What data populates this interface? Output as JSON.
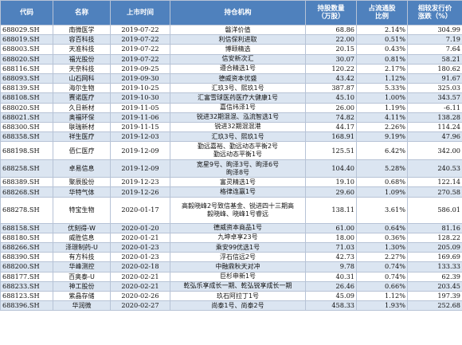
{
  "headers": {
    "code": "代码",
    "name": "名称",
    "date": "上市时间",
    "inst": "持仓机构",
    "shares": "持股数量\n（万股）",
    "ratio": "占流通股\n比例",
    "change": "相较发行价\n涨跌（%）"
  },
  "rows": [
    {
      "code": "688029.SH",
      "name": "南微医学",
      "date": "2019-07-22",
      "inst": "磐洋价值",
      "shares": "68.86",
      "ratio": "2.14%",
      "change": "304.99"
    },
    {
      "code": "688019.SH",
      "name": "容百科技",
      "date": "2019-07-22",
      "inst": "利信保利进取",
      "shares": "22.00",
      "ratio": "0.51%",
      "change": "7.19"
    },
    {
      "code": "688003.SH",
      "name": "天准科技",
      "date": "2019-07-22",
      "inst": "博颐精选",
      "shares": "20.15",
      "ratio": "0.43%",
      "change": "7.64"
    },
    {
      "code": "688020.SH",
      "name": "福光股份",
      "date": "2019-07-22",
      "inst": "信安新次汇",
      "shares": "30.07",
      "ratio": "0.81%",
      "change": "58.21"
    },
    {
      "code": "688116.SH",
      "name": "天奈科技",
      "date": "2019-09-25",
      "inst": "遵合精选1号",
      "shares": "120.22",
      "ratio": "2.17%",
      "change": "180.62"
    },
    {
      "code": "688093.SH",
      "name": "山石网科",
      "date": "2019-09-30",
      "inst": "德威资本优盛",
      "shares": "43.42",
      "ratio": "1.12%",
      "change": "91.67"
    },
    {
      "code": "688139.SH",
      "name": "海尔生物",
      "date": "2019-10-25",
      "inst": "汇玖3号、熙玖1号",
      "shares": "387.87",
      "ratio": "5.33%",
      "change": "325.03"
    },
    {
      "code": "688108.SH",
      "name": "赛诺医疗",
      "date": "2019-10-30",
      "inst": "汇富雪球医药医疗大健康1号",
      "shares": "45.10",
      "ratio": "1.00%",
      "change": "343.57"
    },
    {
      "code": "688020.SH",
      "name": "久日新材",
      "date": "2019-11-05",
      "inst": "嘉信纬泽1号",
      "shares": "26.00",
      "ratio": "1.19%",
      "change": "-6.11"
    },
    {
      "code": "688021.SH",
      "name": "奥福环保",
      "date": "2019-11-06",
      "inst": "锐进32期混混、泓流智选1号",
      "shares": "74.82",
      "ratio": "4.11%",
      "change": "138.28"
    },
    {
      "code": "688300.SH",
      "name": "联瑞新材",
      "date": "2019-11-15",
      "inst": "锐进32期混混港",
      "shares": "44.17",
      "ratio": "2.26%",
      "change": "114.24"
    },
    {
      "code": "688358.SH",
      "name": "祥生医疗",
      "date": "2019-12-03",
      "inst": "汇玖3号、熙玖1号",
      "shares": "168.91",
      "ratio": "9.19%",
      "change": "47.96"
    },
    {
      "code": "688198.SH",
      "name": "佰仁医疗",
      "date": "2019-12-09",
      "inst": "勤远嘉裕、勤远动态平衡2号\n勤远动态平衡1号",
      "shares": "125.51",
      "ratio": "6.42%",
      "change": "342.00"
    },
    {
      "code": "688258.SH",
      "name": "卓易信息",
      "date": "2019-12-09",
      "inst": "宽星9号、昫泽3号、昫泽6号\n昫泽8号",
      "shares": "104.40",
      "ratio": "5.28%",
      "change": "240.53"
    },
    {
      "code": "688389.SH",
      "name": "聚辰股份",
      "date": "2019-12-23",
      "inst": "富灵精选1号",
      "shares": "19.10",
      "ratio": "0.68%",
      "change": "122.14"
    },
    {
      "code": "688268.SH",
      "name": "华特气体",
      "date": "2019-12-26",
      "inst": "格律连赢1号",
      "shares": "29.60",
      "ratio": "1.09%",
      "change": "270.58"
    },
    {
      "code": "688278.SH",
      "name": "特宝生物",
      "date": "2020-01-17",
      "inst": "高毅晓峰2号致信基金、锐进四十三期高\n毅晓峰、晓峰1号睿远",
      "shares": "138.11",
      "ratio": "3.61%",
      "change": "586.01"
    },
    {
      "code": "688158.SH",
      "name": "优刻得-W",
      "date": "2020-01-20",
      "inst": "德威资本商品1号",
      "shares": "61.00",
      "ratio": "0.64%",
      "change": "81.16"
    },
    {
      "code": "688180.SH",
      "name": "威胜信息",
      "date": "2020-01-21",
      "inst": "九坤卓享23号",
      "shares": "18.00",
      "ratio": "0.36%",
      "change": "128.22"
    },
    {
      "code": "688266.SH",
      "name": "泽璟制药-U",
      "date": "2020-01-23",
      "inst": "乘安99优选1号",
      "shares": "71.03",
      "ratio": "1.30%",
      "change": "205.09"
    },
    {
      "code": "688390.SH",
      "name": "有方科技",
      "date": "2020-01-23",
      "inst": "浮石信远2号",
      "shares": "42.73",
      "ratio": "2.27%",
      "change": "169.69"
    },
    {
      "code": "688200.SH",
      "name": "华峰测控",
      "date": "2020-02-18",
      "inst": "中融鼎秋天对冲",
      "shares": "9.78",
      "ratio": "0.74%",
      "change": "133.33"
    },
    {
      "code": "688177.SH",
      "name": "百奥泰-U",
      "date": "2020-02-21",
      "inst": "巨杉申新1号",
      "shares": "40.31",
      "ratio": "0.74%",
      "change": "62.39"
    },
    {
      "code": "688233.SH",
      "name": "神工股份",
      "date": "2020-02-21",
      "inst": "乾弘乐享成长一期、乾弘锐享成长一期",
      "shares": "26.46",
      "ratio": "0.66%",
      "change": "203.45"
    },
    {
      "code": "688123.SH",
      "name": "紫晶存储",
      "date": "2020-02-26",
      "inst": "玖石阿拉丁1号",
      "shares": "45.09",
      "ratio": "1.12%",
      "change": "197.39"
    },
    {
      "code": "688396.SH",
      "name": "华润微",
      "date": "2020-02-27",
      "inst": "尚泰1号、尚泰2号",
      "shares": "458.33",
      "ratio": "1.93%",
      "change": "252.68"
    }
  ]
}
